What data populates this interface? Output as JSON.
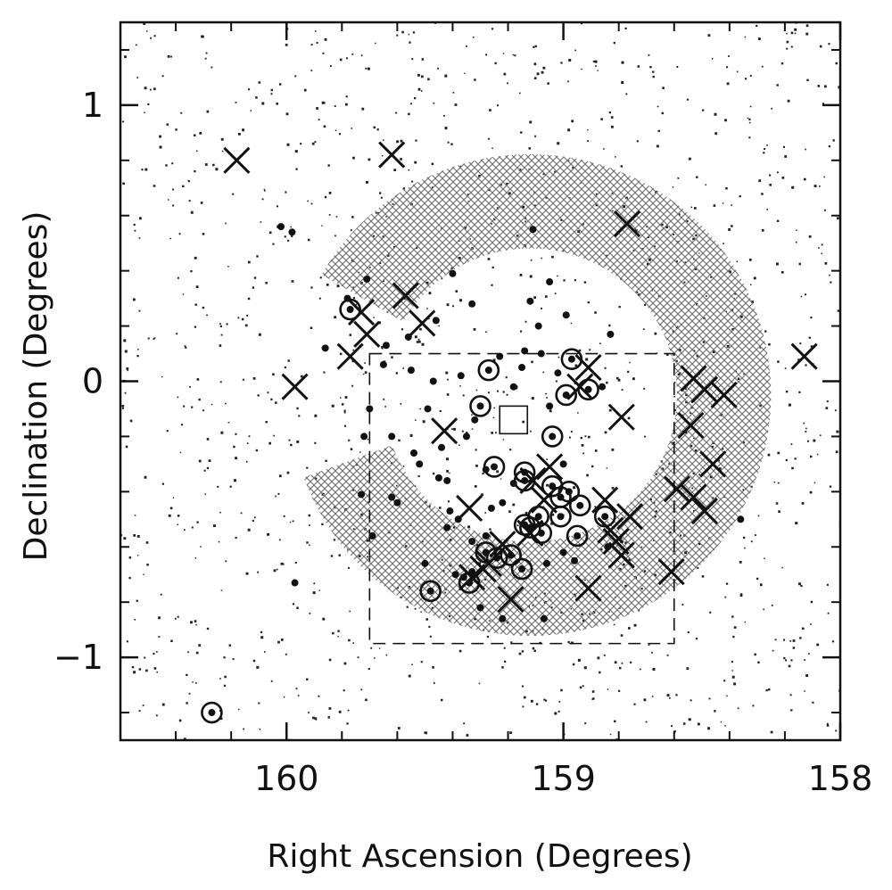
{
  "chart_data": {
    "type": "scatter",
    "title": "",
    "xlabel": "Right Ascension (Degrees)",
    "ylabel": "Declination (Degrees)",
    "xlim": [
      160.6,
      158.0
    ],
    "ylim": [
      -1.3,
      1.3
    ],
    "x_reversed": true,
    "grid": false,
    "x_ticks": [
      {
        "value": 160,
        "label": "160"
      },
      {
        "value": 159,
        "label": "159"
      },
      {
        "value": 158,
        "label": "158"
      }
    ],
    "y_ticks": [
      {
        "value": 1,
        "label": "1"
      },
      {
        "value": 0,
        "label": "0"
      },
      {
        "value": -1,
        "label": "−1"
      }
    ],
    "hatched_region": {
      "center": [
        159.12,
        -0.05
      ],
      "outer_radius": 0.87,
      "inner_radius": 0.53,
      "fill": "#777777"
    },
    "dashed_box": {
      "ra": [
        159.7,
        158.6
      ],
      "dec": [
        0.1,
        -0.95
      ]
    },
    "small_box": {
      "ra": [
        159.23,
        159.13
      ],
      "dec": [
        -0.09,
        -0.19
      ]
    },
    "series": [
      {
        "marker": "cross",
        "points": [
          [
            160.18,
            0.8
          ],
          [
            159.62,
            0.82
          ],
          [
            158.77,
            0.57
          ],
          [
            159.57,
            0.31
          ],
          [
            159.73,
            0.25
          ],
          [
            159.71,
            0.17
          ],
          [
            159.51,
            0.21
          ],
          [
            159.77,
            0.09
          ],
          [
            159.97,
            -0.02
          ],
          [
            158.91,
            0.05
          ],
          [
            158.94,
            -0.02
          ],
          [
            158.53,
            0.01
          ],
          [
            158.49,
            -0.03
          ],
          [
            158.42,
            -0.05
          ],
          [
            158.79,
            -0.13
          ],
          [
            158.54,
            -0.16
          ],
          [
            159.43,
            -0.18
          ],
          [
            158.46,
            -0.3
          ],
          [
            159.05,
            -0.31
          ],
          [
            159.11,
            -0.36
          ],
          [
            159.07,
            -0.43
          ],
          [
            158.85,
            -0.43
          ],
          [
            158.59,
            -0.39
          ],
          [
            158.53,
            -0.42
          ],
          [
            158.49,
            -0.47
          ],
          [
            158.76,
            -0.49
          ],
          [
            158.83,
            -0.54
          ],
          [
            159.34,
            -0.46
          ],
          [
            159.12,
            -0.55
          ],
          [
            159.22,
            -0.59
          ],
          [
            158.81,
            -0.58
          ],
          [
            158.79,
            -0.63
          ],
          [
            159.29,
            -0.68
          ],
          [
            159.33,
            -0.71
          ],
          [
            159.27,
            -0.66
          ],
          [
            158.61,
            -0.69
          ],
          [
            158.91,
            -0.75
          ],
          [
            159.19,
            -0.79
          ],
          [
            158.13,
            0.09
          ]
        ]
      },
      {
        "marker": "circled-dot",
        "points": [
          [
            159.77,
            0.26
          ],
          [
            159.27,
            0.04
          ],
          [
            158.97,
            0.08
          ],
          [
            158.99,
            -0.05
          ],
          [
            158.91,
            -0.03
          ],
          [
            159.3,
            -0.09
          ],
          [
            159.04,
            -0.2
          ],
          [
            159.25,
            -0.31
          ],
          [
            159.14,
            -0.33
          ],
          [
            159.14,
            -0.36
          ],
          [
            159.04,
            -0.38
          ],
          [
            158.98,
            -0.4
          ],
          [
            159.01,
            -0.42
          ],
          [
            158.94,
            -0.45
          ],
          [
            158.85,
            -0.49
          ],
          [
            159.09,
            -0.49
          ],
          [
            159.14,
            -0.52
          ],
          [
            159.12,
            -0.53
          ],
          [
            159.08,
            -0.55
          ],
          [
            158.95,
            -0.56
          ],
          [
            159.01,
            -0.49
          ],
          [
            159.28,
            -0.62
          ],
          [
            159.19,
            -0.63
          ],
          [
            159.24,
            -0.64
          ],
          [
            159.15,
            -0.68
          ],
          [
            159.48,
            -0.76
          ],
          [
            159.34,
            -0.73
          ],
          [
            160.27,
            -1.2
          ]
        ]
      },
      {
        "marker": "dot",
        "points": [
          [
            160.02,
            0.56
          ],
          [
            159.98,
            0.54
          ],
          [
            159.78,
            0.3
          ],
          [
            159.71,
            0.37
          ],
          [
            159.65,
            0.06
          ],
          [
            159.55,
            0.04
          ],
          [
            159.47,
            0.0
          ],
          [
            159.62,
            -0.2
          ],
          [
            159.52,
            -0.3
          ],
          [
            159.45,
            -0.35
          ],
          [
            159.42,
            -0.53
          ],
          [
            159.33,
            -0.58
          ],
          [
            159.28,
            -0.32
          ],
          [
            159.23,
            0.09
          ],
          [
            159.09,
            0.2
          ],
          [
            159.08,
            0.1
          ],
          [
            159.02,
            0.03
          ],
          [
            158.86,
            -0.02
          ],
          [
            159.12,
            0.29
          ],
          [
            159.33,
            0.28
          ],
          [
            159.37,
            0.02
          ],
          [
            159.32,
            -0.14
          ],
          [
            159.41,
            -0.47
          ],
          [
            159.6,
            -0.44
          ],
          [
            159.69,
            -0.56
          ],
          [
            159.72,
            -0.2
          ],
          [
            159.5,
            -0.66
          ],
          [
            159.3,
            -0.82
          ],
          [
            159.07,
            -0.86
          ],
          [
            158.84,
            -0.6
          ],
          [
            158.96,
            -0.65
          ],
          [
            159.06,
            -0.66
          ],
          [
            159.0,
            -0.62
          ],
          [
            159.33,
            -0.69
          ],
          [
            159.36,
            -0.71
          ],
          [
            159.39,
            -0.7
          ],
          [
            159.22,
            -0.86
          ],
          [
            159.0,
            -0.3
          ],
          [
            159.22,
            -0.44
          ],
          [
            159.18,
            -0.37
          ],
          [
            159.62,
            -0.42
          ],
          [
            159.7,
            -0.1
          ],
          [
            159.54,
            -0.26
          ],
          [
            159.44,
            -0.24
          ],
          [
            159.18,
            -0.02
          ],
          [
            159.14,
            0.11
          ],
          [
            159.05,
            0.36
          ],
          [
            159.11,
            0.55
          ],
          [
            159.46,
            0.22
          ],
          [
            159.56,
            0.16
          ],
          [
            159.4,
            0.39
          ],
          [
            159.64,
            0.13
          ],
          [
            159.86,
            0.12
          ],
          [
            159.38,
            -0.5
          ],
          [
            159.26,
            -0.46
          ],
          [
            158.83,
            0.17
          ],
          [
            158.99,
            0.24
          ],
          [
            159.73,
            -0.41
          ],
          [
            159.97,
            -0.73
          ],
          [
            158.36,
            -0.5
          ],
          [
            159.15,
            0.05
          ],
          [
            159.42,
            -0.36
          ],
          [
            159.49,
            -0.1
          ],
          [
            159.35,
            -0.2
          ],
          [
            159.05,
            -0.09
          ],
          [
            159.28,
            -0.56
          ]
        ]
      }
    ]
  },
  "axes": {
    "x_label": "Right Ascension (Degrees)",
    "y_label": "Declination (Degrees)"
  }
}
